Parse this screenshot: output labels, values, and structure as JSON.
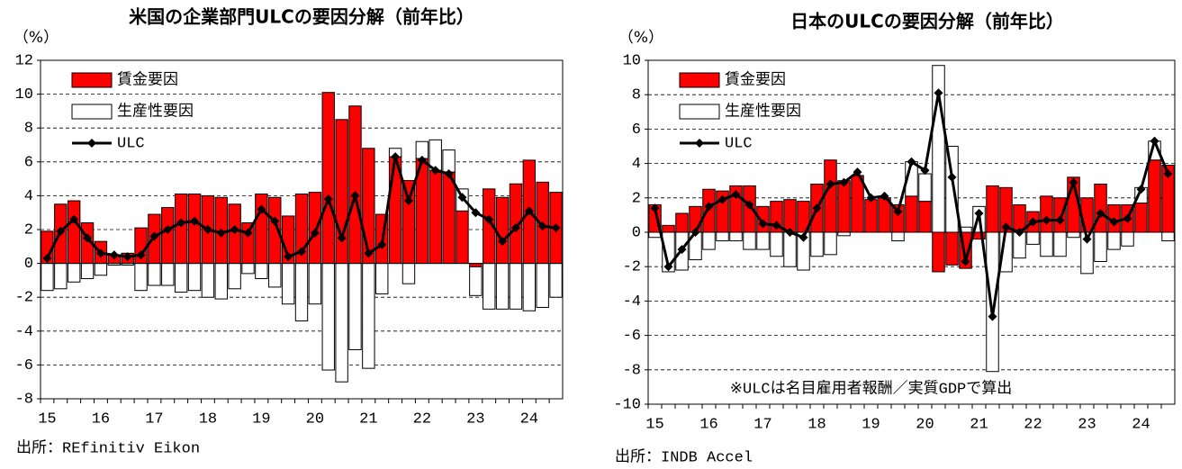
{
  "chart_data": [
    {
      "type": "bar",
      "title": "米国の企業部門ULCの要因分解（前年比）",
      "unit": "（%）",
      "source": "出所：REfinitiv Eikon",
      "stacked": true,
      "grid": true,
      "categories": [
        "15",
        null,
        null,
        null,
        "16",
        null,
        null,
        null,
        "17",
        null,
        null,
        null,
        "18",
        null,
        null,
        null,
        "19",
        null,
        null,
        null,
        "20",
        null,
        null,
        null,
        "21",
        null,
        null,
        null,
        "22",
        null,
        null,
        null,
        "23",
        null,
        null,
        null,
        "24",
        null,
        null
      ],
      "ylim": [
        -8,
        12
      ],
      "yticks": [
        -8,
        -6,
        -4,
        -2,
        0,
        2,
        4,
        6,
        8,
        10,
        12
      ],
      "series": [
        {
          "name": "賃金要因",
          "type": "bar",
          "color": "#ff0000",
          "values": [
            1.9,
            3.5,
            3.7,
            2.4,
            1.3,
            0.5,
            0.6,
            2.1,
            2.9,
            3.3,
            4.1,
            4.1,
            4.0,
            3.9,
            3.5,
            2.4,
            4.1,
            3.9,
            2.8,
            4.1,
            4.2,
            10.1,
            8.5,
            9.3,
            6.8,
            2.9,
            6.3,
            4.9,
            6.2,
            5.5,
            5.4,
            3.1,
            -0.2,
            4.4,
            3.9,
            4.7,
            6.1,
            4.8,
            4.2
          ]
        },
        {
          "name": "生産性要因",
          "type": "bar",
          "color": "#ffffff",
          "values": [
            -1.6,
            -1.5,
            -1.1,
            -0.9,
            -0.7,
            -0.1,
            -0.1,
            -1.6,
            -1.3,
            -1.3,
            -1.7,
            -1.6,
            -2.0,
            -2.1,
            -1.5,
            -0.6,
            -0.9,
            -1.4,
            -2.4,
            -3.4,
            -2.4,
            -6.3,
            -7.0,
            -5.1,
            -6.2,
            -1.8,
            0.5,
            -1.2,
            1.0,
            1.8,
            1.3,
            1.3,
            -1.7,
            -2.7,
            -2.7,
            -2.7,
            -2.8,
            -2.6,
            -2.0
          ]
        },
        {
          "name": "ULC",
          "type": "line",
          "color": "#000000",
          "values": [
            0.3,
            1.9,
            2.6,
            1.5,
            0.6,
            0.5,
            0.4,
            0.5,
            1.6,
            2.0,
            2.4,
            2.5,
            2.0,
            1.8,
            2.0,
            1.8,
            3.2,
            2.5,
            0.4,
            0.7,
            1.8,
            3.8,
            1.5,
            4.0,
            0.6,
            1.1,
            6.3,
            3.7,
            6.1,
            5.5,
            5.3,
            3.9,
            3.0,
            2.6,
            1.3,
            2.1,
            3.1,
            2.2,
            2.1
          ]
        }
      ]
    },
    {
      "type": "bar",
      "title": "日本のULCの要因分解（前年比）",
      "unit": "（%）",
      "source": "出所：INDB Accel",
      "note": "※ULCは名目雇用者報酬／実質GDPで算出",
      "stacked": true,
      "grid": true,
      "categories": [
        "15",
        null,
        null,
        null,
        "16",
        null,
        null,
        null,
        "17",
        null,
        null,
        null,
        "18",
        null,
        null,
        null,
        "19",
        null,
        null,
        null,
        "20",
        null,
        null,
        null,
        "21",
        null,
        null,
        null,
        "22",
        null,
        null,
        null,
        "23",
        null,
        null,
        null,
        "24",
        null,
        null
      ],
      "ylim": [
        -10,
        10
      ],
      "yticks": [
        -10,
        -8,
        -6,
        -4,
        -2,
        0,
        2,
        4,
        6,
        8,
        10
      ],
      "series": [
        {
          "name": "賃金要因",
          "type": "bar",
          "color": "#ff0000",
          "values": [
            1.6,
            0.4,
            1.1,
            1.5,
            2.5,
            2.4,
            2.7,
            2.7,
            1.5,
            1.8,
            1.9,
            1.8,
            2.8,
            4.2,
            3.0,
            3.3,
            1.9,
            2.0,
            1.6,
            2.1,
            1.8,
            -2.3,
            -1.9,
            -2.1,
            -0.4,
            2.7,
            2.6,
            1.6,
            1.2,
            2.1,
            2.0,
            3.2,
            2.0,
            2.8,
            1.6,
            1.6,
            1.7,
            4.2,
            3.9
          ]
        },
        {
          "name": "生産性要因",
          "type": "bar",
          "color": "#ffffff",
          "values": [
            -0.3,
            -2.3,
            -2.2,
            -1.6,
            -1.0,
            -0.5,
            -0.5,
            -1.0,
            -1.0,
            -1.4,
            -2.0,
            -2.2,
            -1.4,
            -1.3,
            -0.2,
            0,
            0,
            0,
            -0.5,
            2.0,
            1.6,
            9.7,
            5.0,
            0.3,
            1.5,
            -8.1,
            -2.3,
            -1.5,
            -0.7,
            -1.4,
            -1.4,
            -0.3,
            -2.4,
            -1.7,
            -1.0,
            -0.8,
            0.9,
            1.1,
            -0.5
          ]
        },
        {
          "name": "ULC",
          "type": "line",
          "color": "#000000",
          "values": [
            1.4,
            -2.0,
            -1.0,
            0.0,
            1.5,
            1.9,
            2.2,
            1.6,
            0.5,
            0.4,
            0.0,
            -0.3,
            1.4,
            2.8,
            2.9,
            3.5,
            2.0,
            2.1,
            1.2,
            4.1,
            3.6,
            8.1,
            3.2,
            -1.7,
            1.1,
            -4.9,
            0.3,
            0.0,
            0.6,
            0.7,
            0.7,
            2.9,
            -0.4,
            1.1,
            0.6,
            0.8,
            2.5,
            5.3,
            3.4
          ]
        }
      ]
    }
  ]
}
